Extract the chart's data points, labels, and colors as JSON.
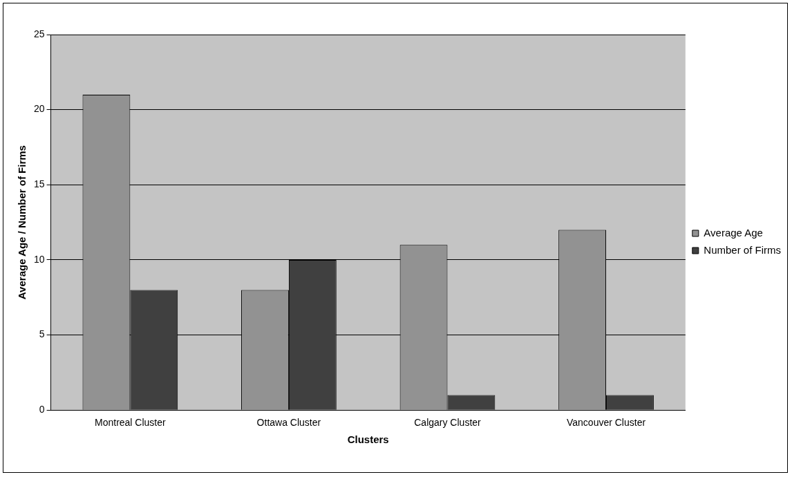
{
  "chart_data": {
    "type": "bar",
    "xlabel": "Clusters",
    "ylabel": "Average Age / Number of Firms",
    "categories": [
      "Montreal Cluster",
      "Ottawa Cluster",
      "Calgary Cluster",
      "Vancouver Cluster"
    ],
    "series": [
      {
        "name": "Average Age",
        "color": "#929292",
        "values": [
          21,
          8,
          11,
          12
        ]
      },
      {
        "name": "Number of Firms",
        "color": "#404040",
        "values": [
          8,
          10,
          1,
          1
        ]
      }
    ],
    "ylim": [
      0,
      25
    ],
    "yticks": [
      0,
      5,
      10,
      15,
      20,
      25
    ],
    "grid": "y",
    "legend": "right"
  }
}
